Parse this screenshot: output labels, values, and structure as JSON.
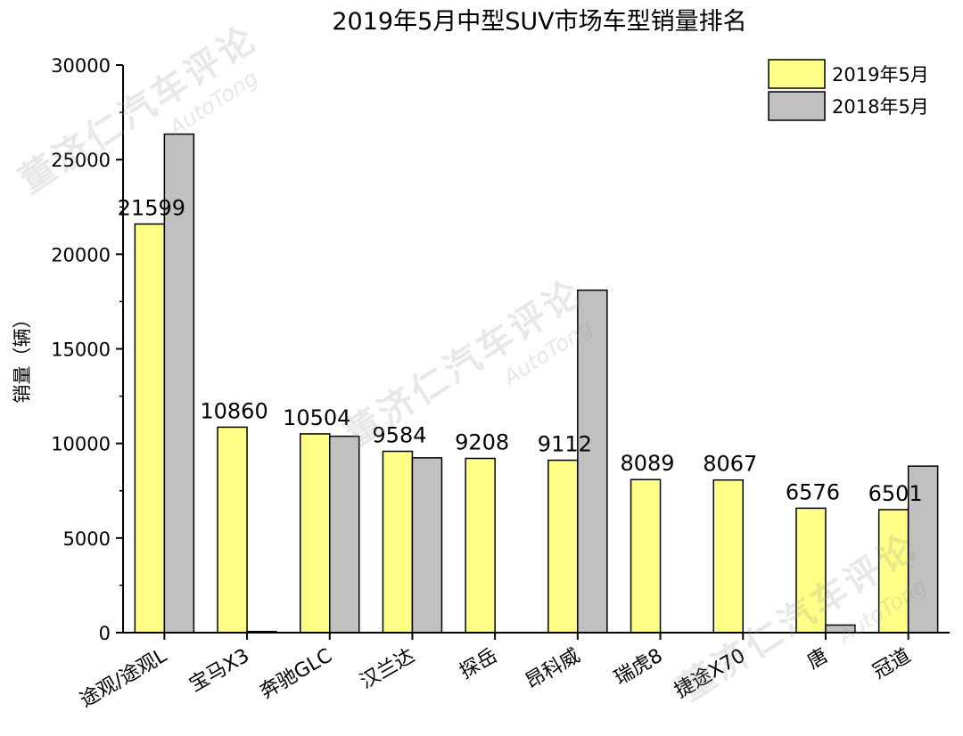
{
  "chart_data": {
    "type": "bar",
    "title": "2019年5月中型SUV市场车型销量排名",
    "xlabel": "",
    "ylabel": "销量（辆）",
    "ylim": [
      0,
      30000
    ],
    "yticks": [
      0,
      5000,
      10000,
      15000,
      20000,
      25000,
      30000
    ],
    "categories": [
      "途观/途观L",
      "宝马X3",
      "奔驰GLC",
      "汉兰达",
      "探岳",
      "昂科威",
      "瑞虎8",
      "捷途X70",
      "唐",
      "冠道"
    ],
    "series": [
      {
        "name": "2019年5月",
        "color": "#ffff88",
        "values": [
          21599,
          10860,
          10504,
          9584,
          9208,
          9112,
          8089,
          8067,
          6576,
          6501
        ]
      },
      {
        "name": "2018年5月",
        "color": "#c0c0c0",
        "values": [
          26350,
          60,
          10380,
          9240,
          0,
          18100,
          0,
          0,
          400,
          8800
        ]
      }
    ],
    "data_labels": [
      "21599",
      "10860",
      "10504",
      "9584",
      "9208",
      "9112",
      "8089",
      "8067",
      "6576",
      "6501"
    ],
    "legend_position": "top-right",
    "grid": false
  },
  "watermark": {
    "cn": "董济仁汽车评论",
    "en": "AutoTong"
  }
}
